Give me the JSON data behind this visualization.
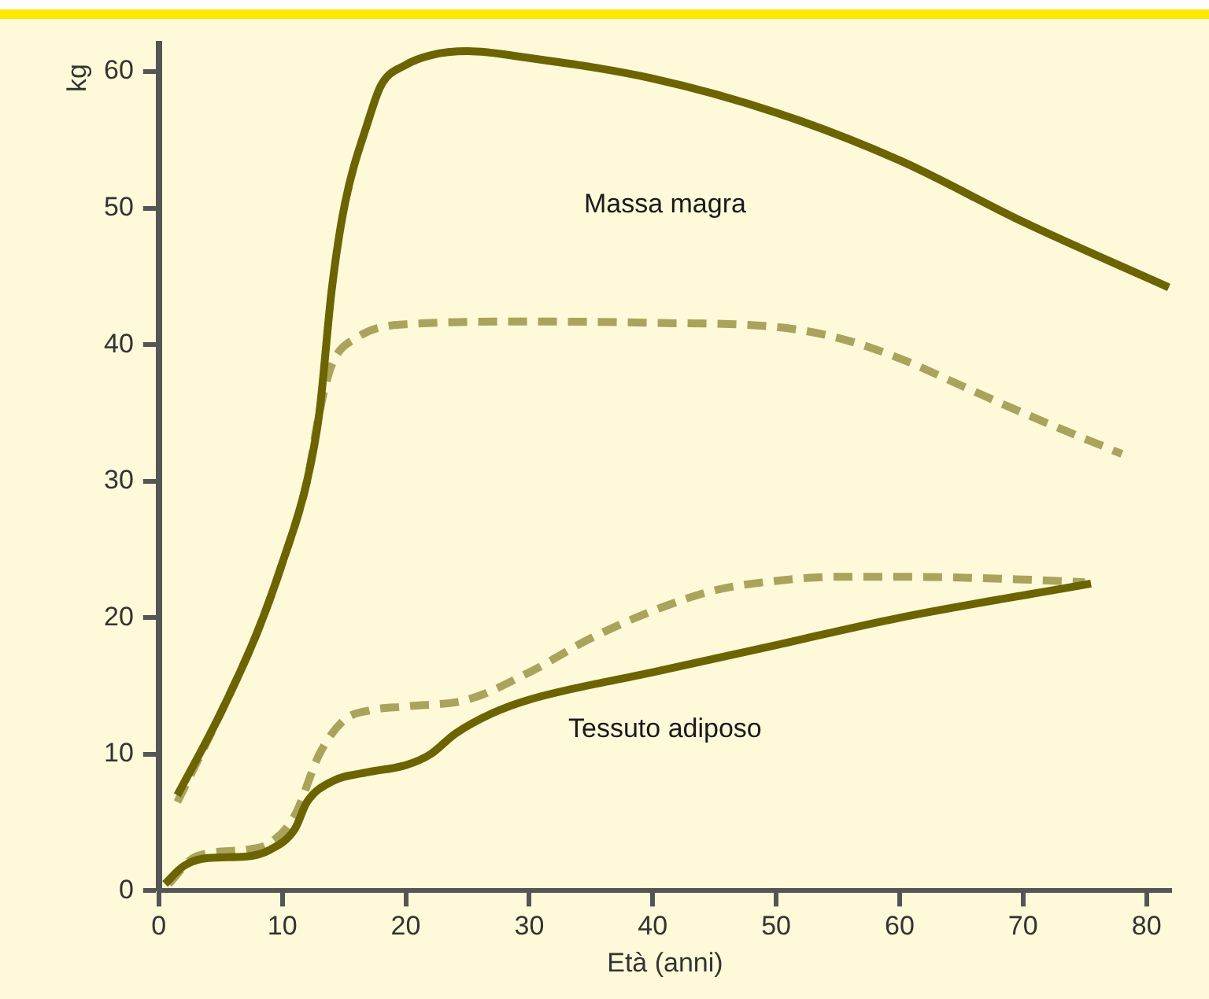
{
  "chart_data": {
    "type": "line",
    "xlabel": "Età (anni)",
    "ylabel": "kg",
    "xlim": [
      0,
      82
    ],
    "xticks": [
      0,
      10,
      20,
      30,
      40,
      50,
      60,
      70,
      80
    ],
    "ylim": [
      0,
      62
    ],
    "yticks": [
      0,
      10,
      20,
      30,
      40,
      50,
      60
    ],
    "grid": false,
    "legend": false,
    "marker": "none",
    "series": [
      {
        "color": "#6b6400",
        "line_style": "solid",
        "x": [
          1.5,
          5,
          8,
          10,
          12,
          13,
          14,
          15,
          17,
          18,
          20,
          22,
          25,
          30,
          40,
          50,
          60,
          70,
          81.8
        ],
        "values": [
          7,
          13,
          19,
          24,
          30,
          35,
          44,
          50,
          56.5,
          59,
          60.5,
          61.2,
          61.5,
          61,
          59.5,
          57,
          53.5,
          49,
          44.2
        ]
      },
      {
        "color": "#a9a35c",
        "line_style": "dashed",
        "x": [
          1.5,
          5,
          8,
          10,
          12,
          13,
          14,
          16,
          20,
          30,
          40,
          50,
          55,
          60,
          65,
          70,
          78
        ],
        "values": [
          6.5,
          13,
          19,
          24,
          30,
          35,
          38.5,
          40.5,
          41.5,
          41.7,
          41.6,
          41.3,
          40.5,
          39,
          37,
          35,
          32
        ]
      },
      {
        "color": "#6b6400",
        "line_style": "solid",
        "x": [
          0.5,
          2,
          4,
          7,
          9,
          11,
          12,
          14,
          17,
          20,
          22,
          24,
          27,
          30,
          40,
          50,
          60,
          75.5
        ],
        "values": [
          0.5,
          1.8,
          2.4,
          2.5,
          3,
          4.5,
          6.5,
          8,
          8.7,
          9.2,
          10,
          11.5,
          13,
          14,
          16,
          18,
          20,
          22.5
        ]
      },
      {
        "color": "#a9a35c",
        "line_style": "dashed",
        "x": [
          0.8,
          3,
          7,
          9,
          11,
          13,
          15,
          17,
          20,
          25,
          30,
          35,
          40,
          45,
          50,
          55,
          60,
          70,
          75
        ],
        "values": [
          0.5,
          2.5,
          3,
          3.5,
          5.5,
          10,
          12.5,
          13.2,
          13.5,
          14,
          16,
          18.5,
          20.5,
          22,
          22.7,
          23,
          23,
          22.8,
          22.6
        ]
      }
    ],
    "annotations": [
      "Massa magra",
      "Tessuto adiposo"
    ]
  }
}
